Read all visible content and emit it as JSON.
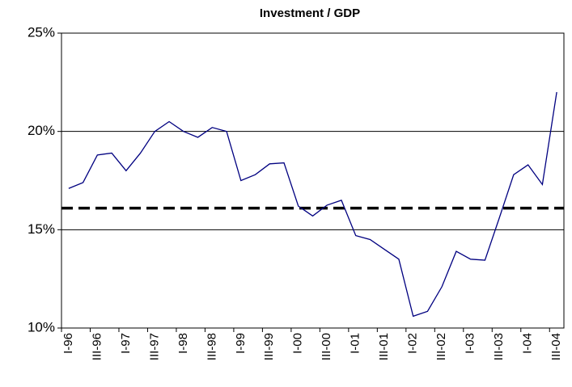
{
  "chart_data": {
    "type": "line",
    "title": "Investment / GDP",
    "categories": [
      "I-96",
      null,
      "III-96",
      null,
      "I-97",
      null,
      "III-97",
      null,
      "I-98",
      null,
      "III-98",
      null,
      "I-99",
      null,
      "III-99",
      null,
      "I-00",
      null,
      "III-00",
      null,
      "I-01",
      null,
      "III-01",
      null,
      "I-02",
      null,
      "III-02",
      null,
      "I-03",
      null,
      "III-03",
      null,
      "I-04",
      null,
      "III-04"
    ],
    "series": [
      {
        "color": "#000080",
        "values": [
          17.1,
          17.4,
          18.8,
          18.9,
          18.0,
          18.9,
          20.0,
          20.5,
          20.0,
          19.7,
          20.2,
          20.0,
          17.5,
          17.8,
          18.35,
          18.4,
          16.2,
          15.7,
          16.25,
          16.5,
          14.7,
          14.5,
          14.0,
          13.5,
          10.6,
          10.85,
          12.1,
          13.9,
          13.5,
          13.45,
          15.6,
          17.8,
          18.3,
          17.3,
          22.0
        ]
      }
    ],
    "reference_line": {
      "value": 16.1,
      "color": "#000000"
    },
    "ylim": [
      10,
      25
    ],
    "yticks": [
      {
        "value": 10,
        "label": "10%"
      },
      {
        "value": 15,
        "label": "15%"
      },
      {
        "value": 20,
        "label": "20%"
      },
      {
        "value": 25,
        "label": "25%"
      }
    ],
    "grid": true
  }
}
